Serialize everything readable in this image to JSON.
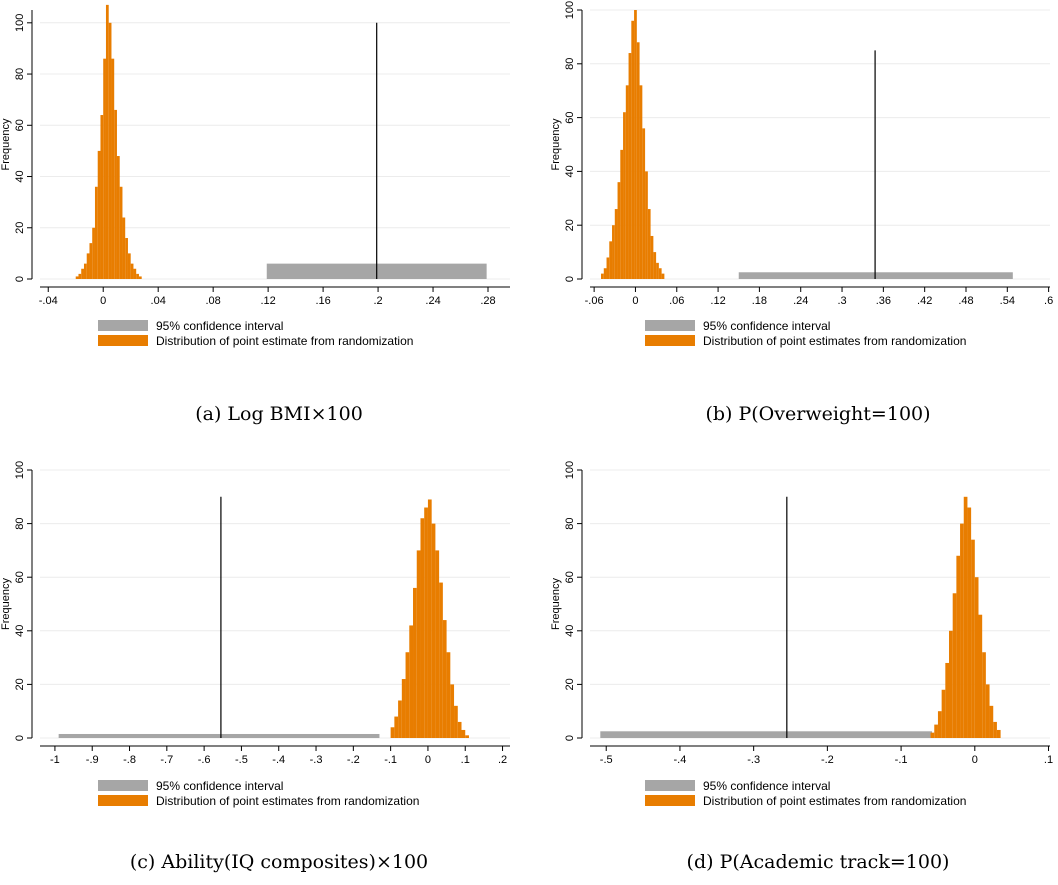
{
  "chart_data": [
    {
      "type": "bar",
      "caption": "(a) Log BMI×100",
      "ylabel": "Frequency",
      "xlim": [
        -0.046,
        0.296
      ],
      "ylim": [
        0,
        105
      ],
      "xticks": [
        -0.04,
        0,
        0.04,
        0.08,
        0.12,
        0.16,
        0.2,
        0.24,
        0.28
      ],
      "xtick_labels": [
        "-.04",
        "0",
        ".04",
        ".08",
        ".12",
        ".16",
        ".2",
        ".24",
        ".28"
      ],
      "yticks": [
        0,
        20,
        40,
        60,
        80,
        100
      ],
      "ci": [
        0.119,
        0.279
      ],
      "ci_height": 6,
      "point_estimate": 0.199,
      "point_line_height": 100,
      "hist_start": -0.02,
      "hist_bin_width": 0.002,
      "hist_counts": [
        1,
        2,
        4,
        6,
        10,
        14,
        20,
        36,
        50,
        64,
        86,
        107,
        100,
        86,
        66,
        48,
        36,
        24,
        16,
        10,
        6,
        4,
        2,
        1
      ],
      "legend": [
        "95% confidence interval",
        "Distribution of point estimate from randomization"
      ]
    },
    {
      "type": "bar",
      "caption": "(b) P(Overweight=100)",
      "ylabel": "Frequency",
      "xlim": [
        -0.066,
        0.602
      ],
      "ylim": [
        0,
        100
      ],
      "xticks": [
        -0.06,
        0,
        0.06,
        0.12,
        0.18,
        0.24,
        0.3,
        0.36,
        0.42,
        0.48,
        0.54,
        0.6
      ],
      "xtick_labels": [
        "-.06",
        "0",
        ".06",
        ".12",
        ".18",
        ".24",
        ".3",
        ".36",
        ".42",
        ".48",
        ".54",
        ".6"
      ],
      "yticks": [
        0,
        20,
        40,
        60,
        80,
        100
      ],
      "ci": [
        0.15,
        0.548
      ],
      "ci_height": 2.5,
      "point_estimate": 0.348,
      "point_line_height": 85,
      "hist_start": -0.05,
      "hist_bin_width": 0.004,
      "hist_counts": [
        2,
        4,
        8,
        14,
        20,
        26,
        36,
        48,
        62,
        72,
        84,
        96,
        100,
        88,
        72,
        56,
        40,
        26,
        16,
        10,
        6,
        4,
        2
      ],
      "legend": [
        "95% confidence interval",
        "Distribution of point estimates from randomization"
      ]
    },
    {
      "type": "bar",
      "caption": "(c) Ability(IQ composites)×100",
      "ylabel": "Frequency",
      "xlim": [
        -1.04,
        0.22
      ],
      "ylim": [
        0,
        100
      ],
      "xticks": [
        -1,
        -0.9,
        -0.8,
        -0.7,
        -0.6,
        -0.5,
        -0.4,
        -0.3,
        -0.2,
        -0.1,
        0,
        0.1,
        0.2
      ],
      "xtick_labels": [
        "-1",
        "-.9",
        "-.8",
        "-.7",
        "-.6",
        "-.5",
        "-.4",
        "-.3",
        "-.2",
        "-.1",
        "0",
        ".1",
        ".2"
      ],
      "yticks": [
        0,
        20,
        40,
        60,
        80,
        100
      ],
      "ci": [
        -0.99,
        -0.13
      ],
      "ci_height": 1.5,
      "point_estimate": -0.555,
      "point_line_height": 90,
      "hist_start": -0.1,
      "hist_bin_width": 0.01,
      "hist_counts": [
        4,
        8,
        14,
        22,
        32,
        42,
        56,
        70,
        82,
        86,
        89,
        80,
        70,
        58,
        44,
        32,
        20,
        12,
        6,
        3,
        1
      ],
      "legend": [
        "95% confidence interval",
        "Distribution of point estimates from randomization"
      ]
    },
    {
      "type": "bar",
      "caption": "(d) P(Academic track=100)",
      "ylabel": "Frequency",
      "xlim": [
        -0.522,
        0.102
      ],
      "ylim": [
        0,
        100
      ],
      "xticks": [
        -0.5,
        -0.4,
        -0.3,
        -0.2,
        -0.1,
        0,
        0.1
      ],
      "xtick_labels": [
        "-.5",
        "-.4",
        "-.3",
        "-.2",
        "-.1",
        "0",
        ".1"
      ],
      "yticks": [
        0,
        20,
        40,
        60,
        80,
        100
      ],
      "ci": [
        -0.508,
        -0.058
      ],
      "ci_height": 2.5,
      "point_estimate": -0.255,
      "point_line_height": 90,
      "hist_start": -0.06,
      "hist_bin_width": 0.005,
      "hist_counts": [
        2,
        5,
        10,
        18,
        28,
        40,
        54,
        68,
        80,
        90,
        86,
        74,
        60,
        46,
        32,
        20,
        12,
        6,
        3
      ],
      "legend": [
        "95% confidence interval",
        "Distribution of point estimates from randomization"
      ]
    }
  ],
  "colors": {
    "hist": "#e87d00",
    "ci": "#a6a6a6",
    "grid": "#ececec",
    "axis": "#000000",
    "point_line": "#000000"
  }
}
